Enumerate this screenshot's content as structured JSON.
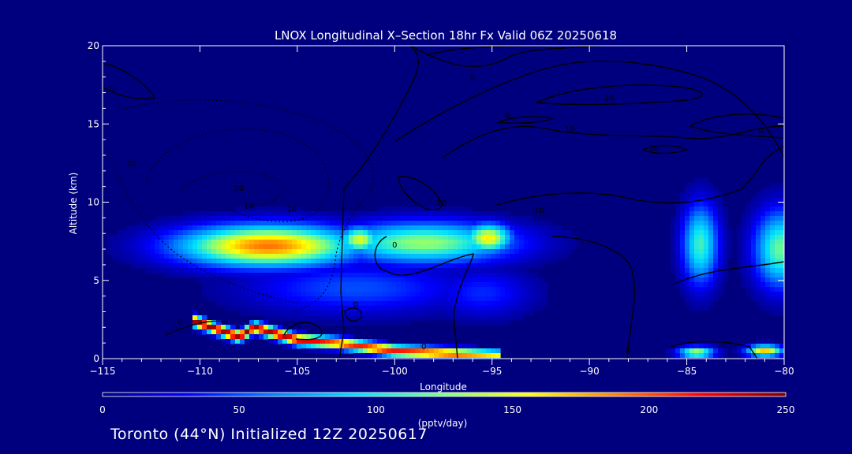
{
  "chart_data": {
    "type": "heatmap",
    "title": "LNOX Longitudinal X–Section 18hr  Fx Valid 06Z 20250618",
    "xlabel": "Longitude",
    "ylabel": "Altitude (km)",
    "xlim": [
      -115,
      -80
    ],
    "ylim": [
      0,
      20
    ],
    "x_ticks": [
      -115,
      -110,
      -105,
      -100,
      -95,
      -90,
      -85,
      -80
    ],
    "x_tick_labels": [
      "−115",
      "−110",
      "−105",
      "−100",
      "−95",
      "−90",
      "−85",
      "−80"
    ],
    "y_ticks": [
      0,
      5,
      10,
      15,
      20
    ],
    "y_tick_labels": [
      "0",
      "5",
      "10",
      "15",
      "20"
    ],
    "colorbar": {
      "label": "(pptv/day)",
      "min": 0,
      "max": 250,
      "ticks": [
        0,
        50,
        100,
        150,
        200,
        250
      ],
      "tick_labels": [
        "0",
        "50",
        "100",
        "150",
        "200",
        "250"
      ],
      "colors": [
        "#00007f",
        "#0000ff",
        "#0080ff",
        "#00e0ff",
        "#80ff80",
        "#ffff00",
        "#ff8000",
        "#ff0000",
        "#800000"
      ]
    },
    "lnox_blobs": [
      {
        "lon": -106.5,
        "alt": 7.2,
        "value": 190,
        "sx": 4.5,
        "sy": 1.3
      },
      {
        "lon": -98.5,
        "alt": 7.4,
        "value": 130,
        "sx": 4.5,
        "sy": 1.3
      },
      {
        "lon": -95.2,
        "alt": 7.7,
        "value": 160,
        "sx": 1.2,
        "sy": 0.9
      },
      {
        "lon": -101.8,
        "alt": 7.6,
        "value": 150,
        "sx": 1.0,
        "sy": 0.8
      },
      {
        "lon": -84.3,
        "alt": 7.3,
        "value": 110,
        "sx": 0.9,
        "sy": 2.5
      },
      {
        "lon": -80.2,
        "alt": 7.0,
        "value": 120,
        "sx": 1.3,
        "sy": 2.4
      },
      {
        "lon": -102.0,
        "alt": 4.5,
        "value": 50,
        "sx": 5.5,
        "sy": 1.6
      },
      {
        "lon": -95.5,
        "alt": 4.2,
        "value": 40,
        "sx": 2.5,
        "sy": 1.5
      }
    ],
    "surface_band": [
      {
        "lon": -110.3,
        "alt": 2.6,
        "value": 250
      },
      {
        "lon": -108.0,
        "alt": 1.6,
        "value": 240
      },
      {
        "lon": -107.2,
        "alt": 2.2,
        "value": 245
      },
      {
        "lon": -105.0,
        "alt": 1.4,
        "value": 230
      },
      {
        "lon": -103.0,
        "alt": 1.2,
        "value": 210
      },
      {
        "lon": -100.0,
        "alt": 0.7,
        "value": 215
      },
      {
        "lon": -97.0,
        "alt": 0.5,
        "value": 205
      },
      {
        "lon": -94.5,
        "alt": 0.4,
        "value": 150
      }
    ],
    "surface_patches": [
      {
        "lon": -84.5,
        "alt": 0.4,
        "value": 140
      },
      {
        "lon": -81.0,
        "alt": 0.5,
        "value": 170
      }
    ],
    "contour_labels": [
      {
        "lon": -107.5,
        "alt": 9.6,
        "text": "10"
      },
      {
        "lon": -105.3,
        "alt": 9.4,
        "text": "10"
      },
      {
        "lon": -97.6,
        "alt": 9.8,
        "text": "10"
      },
      {
        "lon": -92.6,
        "alt": 9.3,
        "text": "10"
      },
      {
        "lon": -91.0,
        "alt": 14.5,
        "text": "10"
      },
      {
        "lon": -89.0,
        "alt": 16.5,
        "text": "10"
      },
      {
        "lon": -86.7,
        "alt": 13.3,
        "text": "10"
      },
      {
        "lon": -96.0,
        "alt": 17.8,
        "text": "0"
      },
      {
        "lon": -94.2,
        "alt": 15.4,
        "text": "0"
      },
      {
        "lon": -81.2,
        "alt": 14.4,
        "text": "0"
      },
      {
        "lon": -100.0,
        "alt": 7.1,
        "text": "0"
      },
      {
        "lon": -102.0,
        "alt": 3.3,
        "text": "0"
      },
      {
        "lon": -111.0,
        "alt": 2.2,
        "text": "0"
      },
      {
        "lon": -98.5,
        "alt": 0.6,
        "text": "0"
      },
      {
        "lon": -88.0,
        "alt": 0.3,
        "text": "0"
      },
      {
        "lon": -108.0,
        "alt": 10.7,
        "text": "20"
      },
      {
        "lon": -113.5,
        "alt": 12.3,
        "text": "20"
      },
      {
        "lon": -114.5,
        "alt": 17.0,
        "text": "0"
      }
    ]
  },
  "caption": "Toronto (44°N) Initialized 12Z 20250617"
}
